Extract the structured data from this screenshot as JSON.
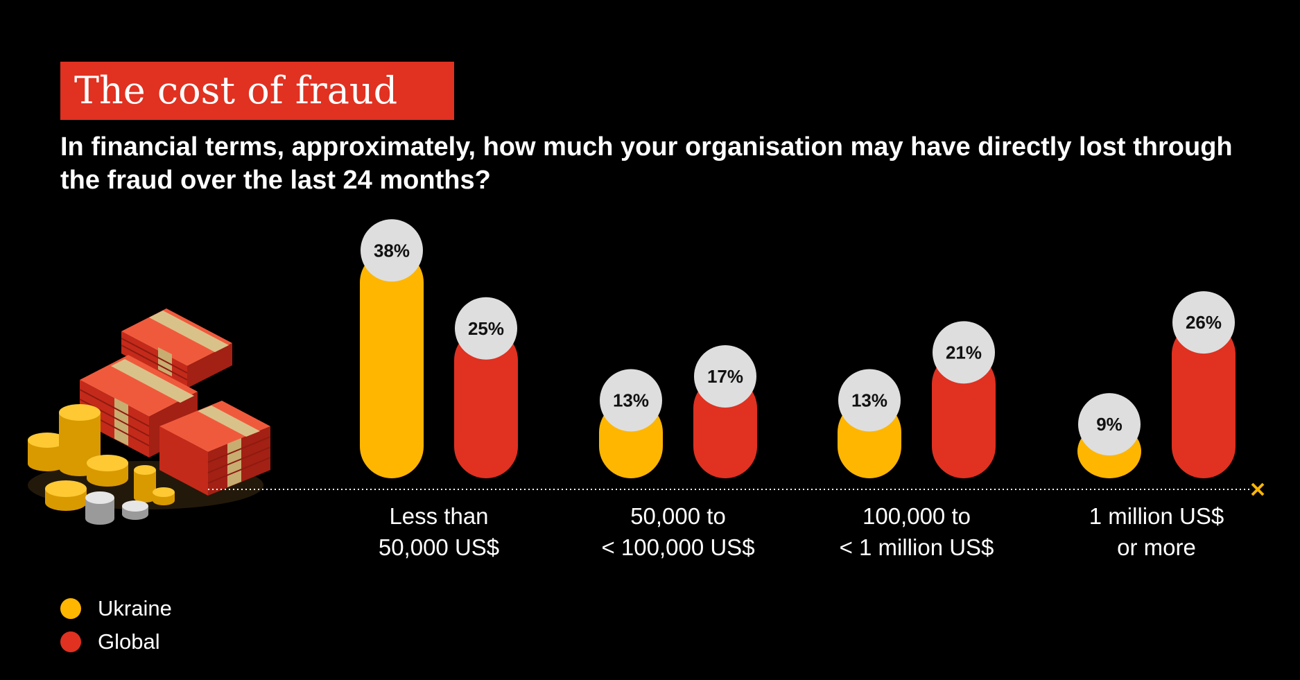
{
  "header": {
    "title": "The cost of fraud",
    "subtitle": "In financial terms, approximately, how much your organisation may have directly lost through the fraud over the last 24 months?"
  },
  "colors": {
    "background": "#000000",
    "title_box": "#e03121",
    "ukraine": "#ffb600",
    "global": "#e03121",
    "label_circle": "#dedede",
    "baseline": "#ffb600"
  },
  "chart_data": {
    "type": "bar",
    "title": "The cost of fraud",
    "subtitle": "In financial terms, approximately, how much your organisation may have directly lost through the fraud over the last 24 months?",
    "categories": [
      [
        "Less than",
        "50,000 US$"
      ],
      [
        "50,000 to",
        "< 100,000 US$"
      ],
      [
        "100,000 to",
        "< 1 million US$"
      ],
      [
        "1 million US$",
        "or more"
      ]
    ],
    "series": [
      {
        "name": "Ukraine",
        "values": [
          38,
          13,
          13,
          9
        ],
        "labels": [
          "38%",
          "13%",
          "13%",
          "9%"
        ],
        "color": "#ffb600"
      },
      {
        "name": "Global",
        "values": [
          25,
          17,
          21,
          26
        ],
        "labels": [
          "25%",
          "17%",
          "21%",
          "26%"
        ],
        "color": "#e03121"
      }
    ],
    "unit": "%",
    "xlabel": "",
    "ylabel": "",
    "ylim": [
      0,
      38
    ],
    "grid": false,
    "legend": "bottom-left"
  },
  "legend": {
    "items": [
      {
        "label": "Ukraine",
        "color": "#ffb600"
      },
      {
        "label": "Global",
        "color": "#e03121"
      }
    ]
  },
  "illustration": {
    "icon": "money-stack-icon"
  }
}
